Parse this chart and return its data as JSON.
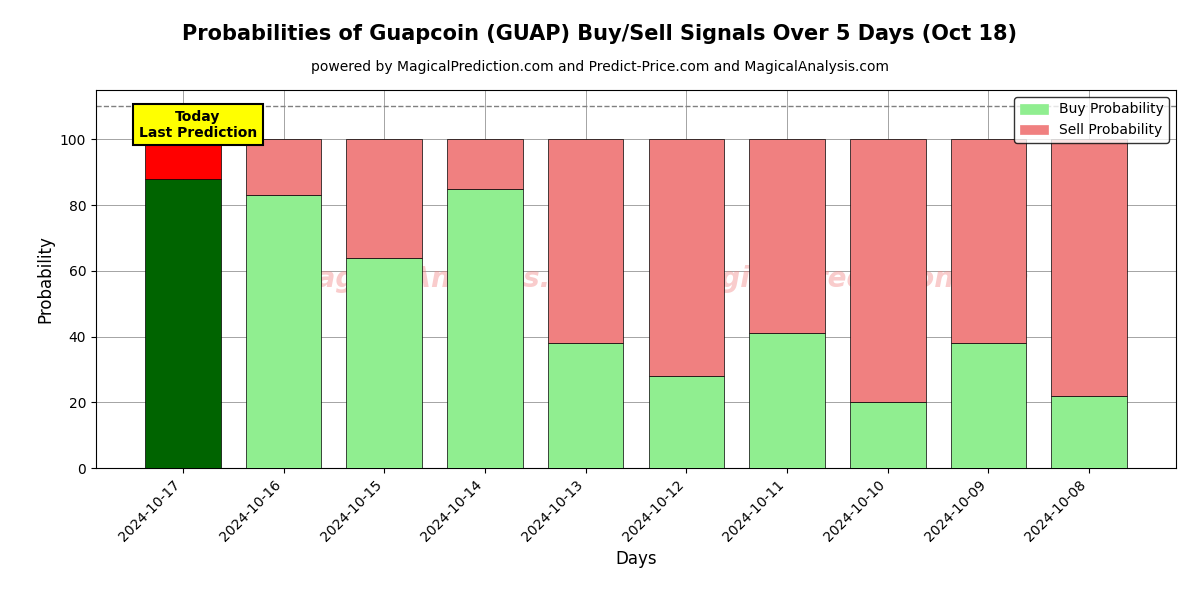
{
  "title": "Probabilities of Guapcoin (GUAP) Buy/Sell Signals Over 5 Days (Oct 18)",
  "subtitle": "powered by MagicalPrediction.com and Predict-Price.com and MagicalAnalysis.com",
  "xlabel": "Days",
  "ylabel": "Probability",
  "dates": [
    "2024-10-17",
    "2024-10-16",
    "2024-10-15",
    "2024-10-14",
    "2024-10-13",
    "2024-10-12",
    "2024-10-11",
    "2024-10-10",
    "2024-10-09",
    "2024-10-08"
  ],
  "buy_values": [
    88,
    83,
    64,
    85,
    38,
    28,
    41,
    20,
    38,
    22
  ],
  "sell_values": [
    12,
    17,
    36,
    15,
    62,
    72,
    59,
    80,
    62,
    78
  ],
  "today_buy_color": "#006400",
  "today_sell_color": "#FF0000",
  "buy_color": "#90EE90",
  "sell_color": "#F08080",
  "today_box_color": "#FFFF00",
  "today_box_text": "Today\nLast Prediction",
  "dashed_line_y": 110,
  "ylim": [
    0,
    115
  ],
  "yticks": [
    0,
    20,
    40,
    60,
    80,
    100
  ],
  "bar_width": 0.75,
  "legend_buy_label": "Buy Probability",
  "legend_sell_label": "Sell Probability",
  "title_fontsize": 15,
  "subtitle_fontsize": 10,
  "axis_label_fontsize": 12,
  "tick_fontsize": 10
}
